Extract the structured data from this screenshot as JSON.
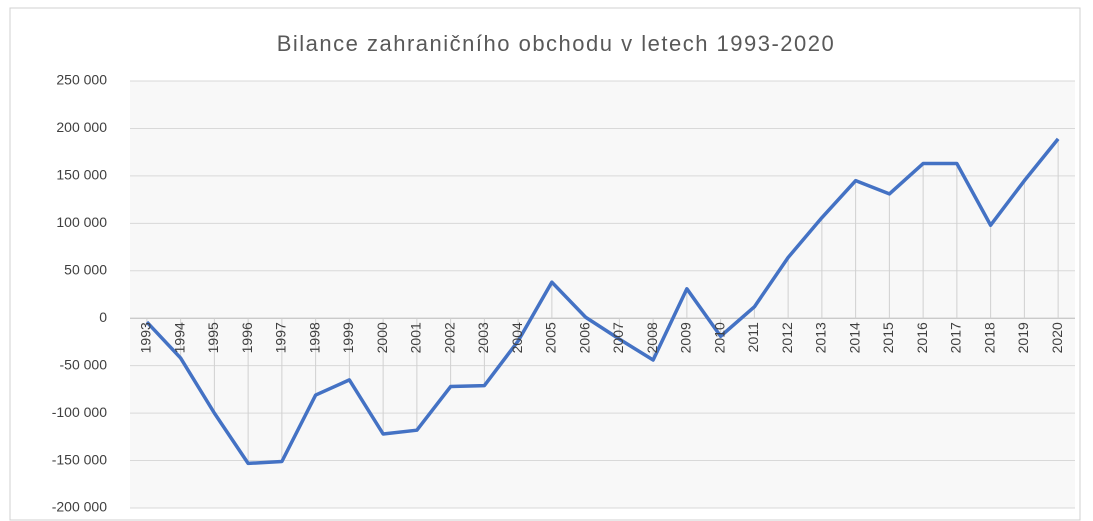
{
  "chart_data": {
    "type": "line",
    "title": "Bilance zahraničního obchodu v letech 1993-2020",
    "categories": [
      "1993",
      "1994",
      "1995",
      "1996",
      "1997",
      "1998",
      "1999",
      "2000",
      "2001",
      "2002",
      "2003",
      "2004",
      "2005",
      "2006",
      "2007",
      "2008",
      "2009",
      "2010",
      "2011",
      "2012",
      "2013",
      "2014",
      "2015",
      "2016",
      "2017",
      "2018",
      "2019",
      "2020"
    ],
    "values": [
      -4000,
      -42000,
      -100000,
      -153000,
      -151000,
      -81000,
      -65000,
      -122000,
      -118000,
      -72000,
      -71000,
      -24000,
      38000,
      1000,
      -22000,
      -44000,
      31000,
      -19000,
      12000,
      64000,
      106000,
      145000,
      131000,
      163000,
      163000,
      98000,
      145000,
      189000
    ],
    "color": "#4472c4",
    "ylim": [
      -200000,
      250000
    ],
    "yticks": [
      {
        "value": -200000,
        "label": "-200 000"
      },
      {
        "value": -150000,
        "label": "-150 000"
      },
      {
        "value": -100000,
        "label": "-100 000"
      },
      {
        "value": -50000,
        "label": "-50 000"
      },
      0,
      {
        "value": 50000,
        "label": "50 000"
      },
      {
        "value": 100000,
        "label": "100 000"
      },
      {
        "value": 150000,
        "label": "150 000"
      },
      {
        "value": 200000,
        "label": "200 000"
      },
      {
        "value": 250000,
        "label": "250 000"
      }
    ],
    "grid": true,
    "drop_lines": true
  }
}
